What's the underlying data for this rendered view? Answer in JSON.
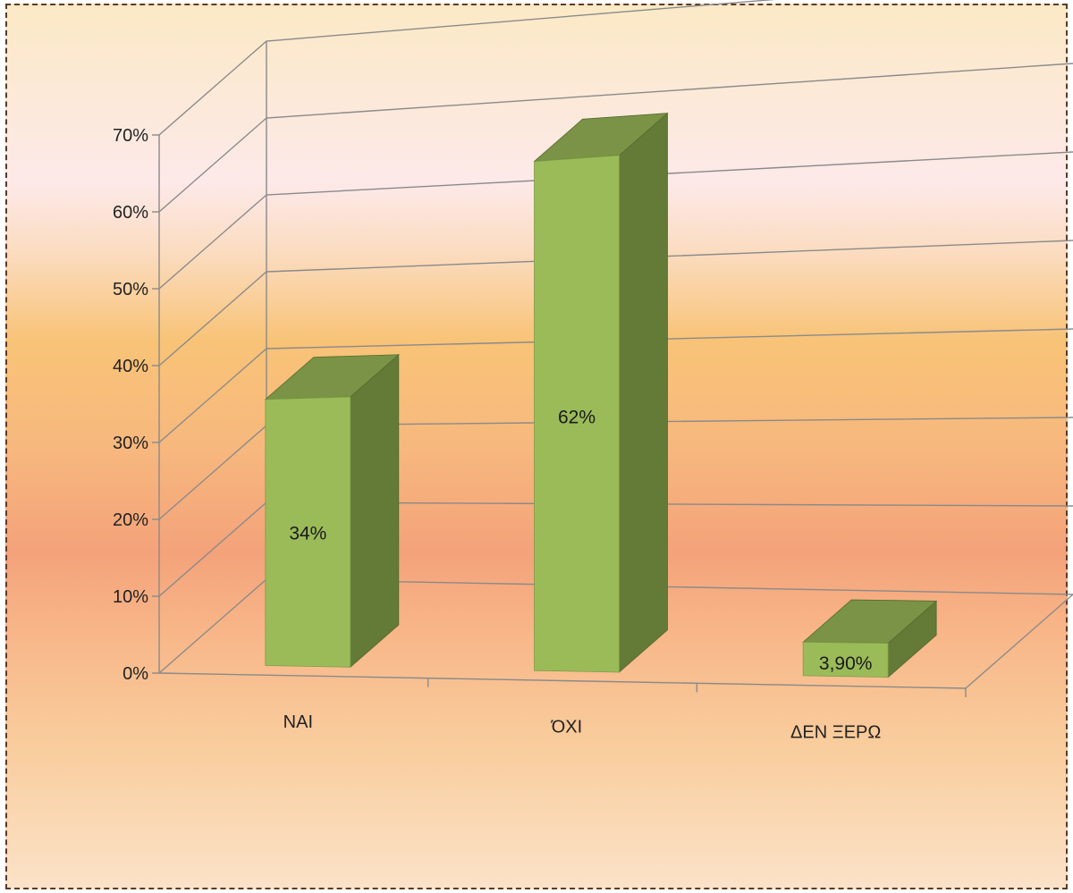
{
  "chart_data": {
    "type": "bar",
    "style": "3d-column",
    "categories": [
      "ΝΑΙ",
      "ΌΧΙ",
      "ΔΕΝ ΞΕΡΩ"
    ],
    "values": [
      34,
      62,
      3.9
    ],
    "data_labels": [
      "34%",
      "62%",
      "3,90%"
    ],
    "yticks": [
      "0%",
      "10%",
      "20%",
      "30%",
      "40%",
      "50%",
      "60%",
      "70%"
    ],
    "ylim": [
      0,
      70
    ],
    "title": "",
    "xlabel": "",
    "ylabel": "",
    "grid": true,
    "legend": "none",
    "colors": {
      "bar_front": "#9bbb59",
      "bar_top": "#7a9346",
      "bar_side": "#647a37",
      "gridline": "#8a8a8a"
    }
  }
}
